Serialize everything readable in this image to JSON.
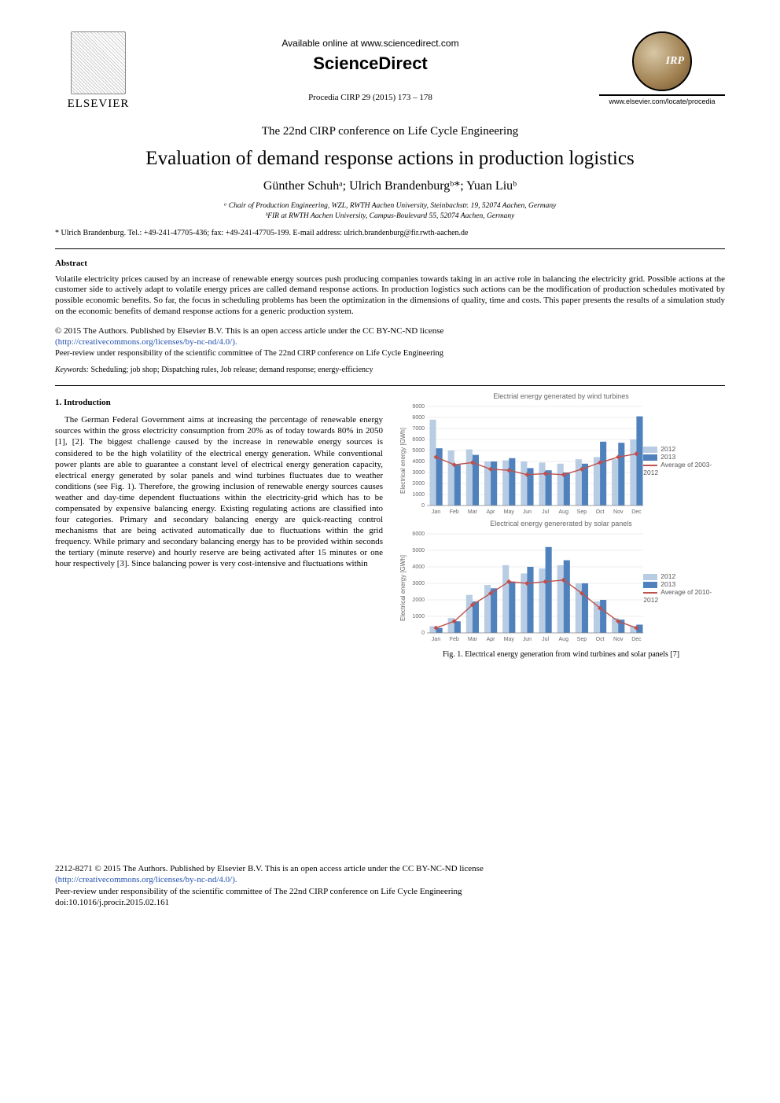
{
  "header": {
    "elsevier_label": "ELSEVIER",
    "available_text": "Available online at www.sciencedirect.com",
    "sciencedirect": "ScienceDirect",
    "procedia_ref": "Procedia CIRP 29 (2015) 173 – 178",
    "cirp_logo_text": "IRP",
    "cirp_url": "www.elsevier.com/locate/procedia"
  },
  "conference": "The 22nd CIRP conference on Life Cycle Engineering",
  "title": "Evaluation of demand response actions in production logistics",
  "authors_html": "Günther Schuhᵃ; Ulrich Brandenburgᵇ*; Yuan Liuᵇ",
  "affiliations": {
    "a": "ᵃ Chair of Production Engineering, WZL, RWTH Aachen University, Steinbachstr. 19, 52074 Aachen, Germany",
    "b": "ᵇFIR at RWTH Aachen University, Campus-Boulevard 55, 52074 Aachen, Germany"
  },
  "corresponding": "* Ulrich Brandenburg. Tel.: +49-241-47705-436; fax: +49-241-47705-199. E-mail address: ulrich.brandenburg@fir.rwth-aachen.de",
  "abstract": {
    "heading": "Abstract",
    "body": "Volatile electricity prices caused by an increase of renewable energy sources push producing companies towards taking in an active role in balancing the electricity grid. Possible actions at the customer side to actively adapt to volatile energy prices are called demand response actions. In production logistics such actions can be the modification of production schedules motivated by possible economic benefits. So far, the focus in scheduling problems has been the optimization in the dimensions of quality, time and costs. This paper presents the results of a simulation study on the economic benefits of demand response actions for a generic production system."
  },
  "license": {
    "line1": "© 2015 The Authors. Published by Elsevier B.V. This is an open access article under the CC BY-NC-ND license",
    "link": "(http://creativecommons.org/licenses/by-nc-nd/4.0/).",
    "peer": "Peer-review under responsibility of the scientific committee of The 22nd CIRP conference on Life Cycle Engineering"
  },
  "keywords": {
    "label": "Keywords:",
    "text": " Scheduling; job shop; Dispatching rules, Job release; demand response; energy-efficiency"
  },
  "introduction": {
    "heading": "1. Introduction",
    "body": "The German Federal Government aims at increasing the percentage of renewable energy sources within the gross electricity consumption from 20% as of today towards 80% in 2050 [1], [2]. The biggest challenge caused by the increase in renewable energy sources is considered to be the high volatility of the electrical energy generation. While conventional power plants are able to guarantee a constant level of electrical energy generation capacity, electrical energy generated by solar panels and wind turbines fluctuates due to weather conditions (see Fig. 1). Therefore, the growing inclusion of renewable energy sources causes weather and day-time dependent fluctuations within the electricity-grid which has to be compensated by expensive balancing energy. Existing regulating actions are classified into four categories. Primary and secondary balancing energy are quick-reacting control mechanisms that are being activated automatically due to fluctuations within the grid frequency. While primary and secondary balancing energy has to be provided within seconds the tertiary (minute reserve) and hourly reserve are being activated after 15 minutes or one hour respectively [3]. Since balancing power is very cost-intensive and fluctuations within"
  },
  "fig1": {
    "caption": "Fig. 1. Electrical energy generation from wind turbines and solar panels [7]",
    "chart_top": {
      "title": "Electrial energy generated by wind turbines",
      "type": "bar+line",
      "categories": [
        "Jan",
        "Feb",
        "Mar",
        "Apr",
        "May",
        "Jun",
        "Jul",
        "Aug",
        "Sep",
        "Oct",
        "Nov",
        "Dec"
      ],
      "y_label": "Electrical energy [GWh]",
      "ylim": [
        0,
        9000
      ],
      "ytick_step": 1000,
      "series": {
        "2012": [
          7800,
          5000,
          5100,
          4000,
          4100,
          4000,
          3900,
          3800,
          4200,
          4400,
          4200,
          6000
        ],
        "2013": [
          5200,
          3700,
          4600,
          4000,
          4300,
          3400,
          3200,
          3000,
          3800,
          5800,
          5700,
          8100
        ],
        "avg_2003_2012": [
          4400,
          3700,
          3900,
          3300,
          3200,
          2800,
          2900,
          2800,
          3300,
          3900,
          4400,
          4700
        ]
      },
      "colors": {
        "2012": "#b8cce4",
        "2013": "#4f81bd",
        "avg": "#c0504d"
      },
      "legend": [
        "2012",
        "2013",
        "Average of 2003-2012"
      ],
      "background_color": "#ffffff",
      "grid_color": "#d9d9d9",
      "bar_width": 0.35,
      "title_fontsize": 9,
      "label_fontsize": 8
    },
    "chart_bottom": {
      "title": "Electrical energy genererated by solar panels",
      "type": "bar+line",
      "categories": [
        "Jan",
        "Feb",
        "Mar",
        "Apr",
        "May",
        "Jun",
        "Jul",
        "Aug",
        "Sep",
        "Oct",
        "Nov",
        "Dec"
      ],
      "y_label": "Electrical energy [GWh]",
      "ylim": [
        0,
        6000
      ],
      "ytick_step": 1000,
      "series": {
        "2012": [
          400,
          900,
          2300,
          2900,
          4100,
          3600,
          3900,
          4100,
          3000,
          1900,
          900,
          400
        ],
        "2013": [
          300,
          700,
          1900,
          2700,
          3100,
          4000,
          5200,
          4400,
          3000,
          2000,
          800,
          500
        ],
        "avg_2010_2012": [
          300,
          700,
          1700,
          2400,
          3100,
          3000,
          3100,
          3200,
          2400,
          1500,
          700,
          300
        ]
      },
      "colors": {
        "2012": "#b8cce4",
        "2013": "#4f81bd",
        "avg": "#c0504d"
      },
      "legend": [
        "2012",
        "2013",
        "Average of 2010-2012"
      ],
      "background_color": "#ffffff",
      "grid_color": "#d9d9d9",
      "bar_width": 0.35,
      "title_fontsize": 9,
      "label_fontsize": 8
    }
  },
  "footer": {
    "line1": "2212-8271 © 2015 The Authors. Published by Elsevier B.V. This is an open access article under the CC BY-NC-ND license",
    "link": "(http://creativecommons.org/licenses/by-nc-nd/4.0/).",
    "peer": "Peer-review under responsibility of the scientific committee of The 22nd CIRP conference on Life Cycle Engineering",
    "doi": "doi:10.1016/j.procir.2015.02.161"
  }
}
